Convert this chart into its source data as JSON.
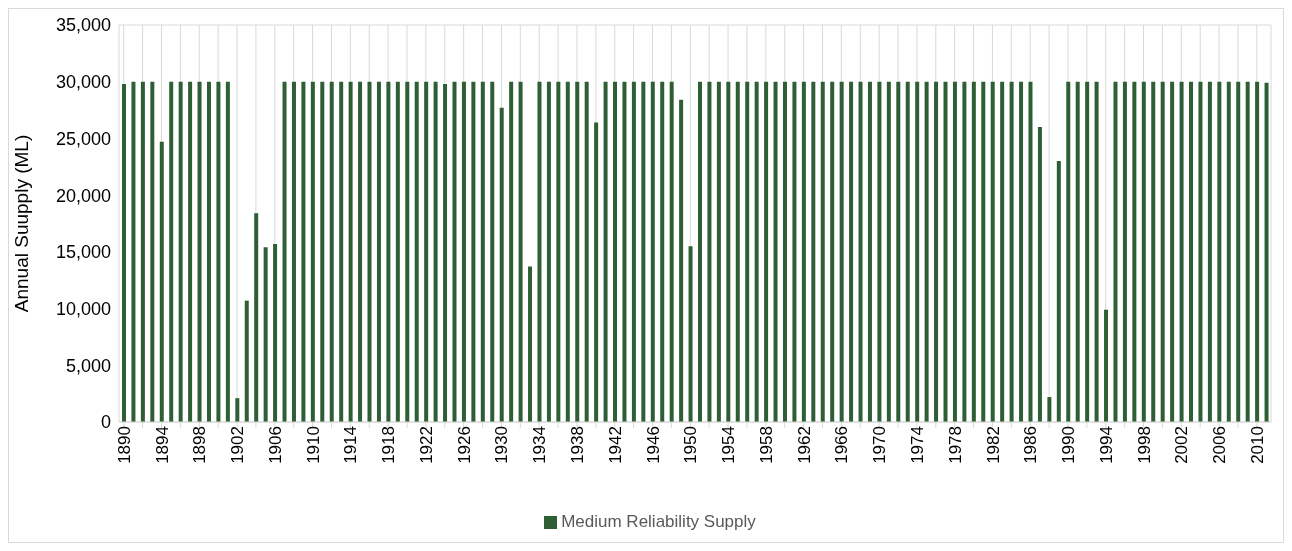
{
  "chart_data": {
    "type": "bar",
    "ylabel": "Annual Suupply (ML)",
    "categories": [
      "1890",
      null,
      null,
      null,
      "1894",
      null,
      null,
      null,
      "1898",
      null,
      null,
      null,
      "1902",
      null,
      null,
      null,
      "1906",
      null,
      null,
      null,
      "1910",
      null,
      null,
      null,
      "1914",
      null,
      null,
      null,
      "1918",
      null,
      null,
      null,
      "1922",
      null,
      null,
      null,
      "1926",
      null,
      null,
      null,
      "1930",
      null,
      null,
      null,
      "1934",
      null,
      null,
      null,
      "1938",
      null,
      null,
      null,
      "1942",
      null,
      null,
      null,
      "1946",
      null,
      null,
      null,
      "1950",
      null,
      null,
      null,
      "1954",
      null,
      null,
      null,
      "1958",
      null,
      null,
      null,
      "1962",
      null,
      null,
      null,
      "1966",
      null,
      null,
      null,
      "1970",
      null,
      null,
      null,
      "1974",
      null,
      null,
      null,
      "1978",
      null,
      null,
      null,
      "1982",
      null,
      null,
      null,
      "1986",
      null,
      null,
      null,
      "1990",
      null,
      null,
      null,
      "1994",
      null,
      null,
      null,
      "1998",
      null,
      null,
      null,
      "2002",
      null,
      null,
      null,
      "2006",
      null,
      null,
      null,
      "2010",
      null
    ],
    "series": [
      {
        "name": "Medium Reliability Supply",
        "color": "#2e5e33",
        "values": [
          29800,
          30000,
          30000,
          30000,
          24700,
          30000,
          30000,
          30000,
          30000,
          30000,
          30000,
          30000,
          2100,
          10700,
          18400,
          15400,
          15700,
          30000,
          30000,
          30000,
          30000,
          30000,
          30000,
          30000,
          30000,
          30000,
          30000,
          30000,
          30000,
          30000,
          30000,
          30000,
          30000,
          30000,
          29800,
          30000,
          30000,
          30000,
          30000,
          30000,
          27700,
          30000,
          30000,
          13700,
          30000,
          30000,
          30000,
          30000,
          30000,
          30000,
          26400,
          30000,
          30000,
          30000,
          30000,
          30000,
          30000,
          30000,
          30000,
          28400,
          15500,
          30000,
          30000,
          30000,
          30000,
          30000,
          30000,
          30000,
          30000,
          30000,
          30000,
          30000,
          30000,
          30000,
          30000,
          30000,
          30000,
          30000,
          30000,
          30000,
          30000,
          30000,
          30000,
          30000,
          30000,
          30000,
          30000,
          30000,
          30000,
          30000,
          30000,
          30000,
          30000,
          30000,
          30000,
          30000,
          30000,
          26000,
          2200,
          23000,
          30000,
          30000,
          30000,
          30000,
          9900,
          30000,
          30000,
          30000,
          30000,
          30000,
          30000,
          30000,
          30000,
          30000,
          30000,
          30000,
          30000,
          30000,
          30000,
          30000,
          30000,
          29900
        ]
      }
    ],
    "ylim": [
      0,
      35000
    ],
    "yticks": [
      {
        "value": 0,
        "label": "0"
      },
      {
        "value": 5000,
        "label": "5,000"
      },
      {
        "value": 10000,
        "label": "10,000"
      },
      {
        "value": 15000,
        "label": "15,000"
      },
      {
        "value": 20000,
        "label": "20,000"
      },
      {
        "value": 25000,
        "label": "25,000"
      },
      {
        "value": 30000,
        "label": "30,000"
      },
      {
        "value": 35000,
        "label": "35,000"
      }
    ],
    "grid": true,
    "legend": "bottom"
  }
}
